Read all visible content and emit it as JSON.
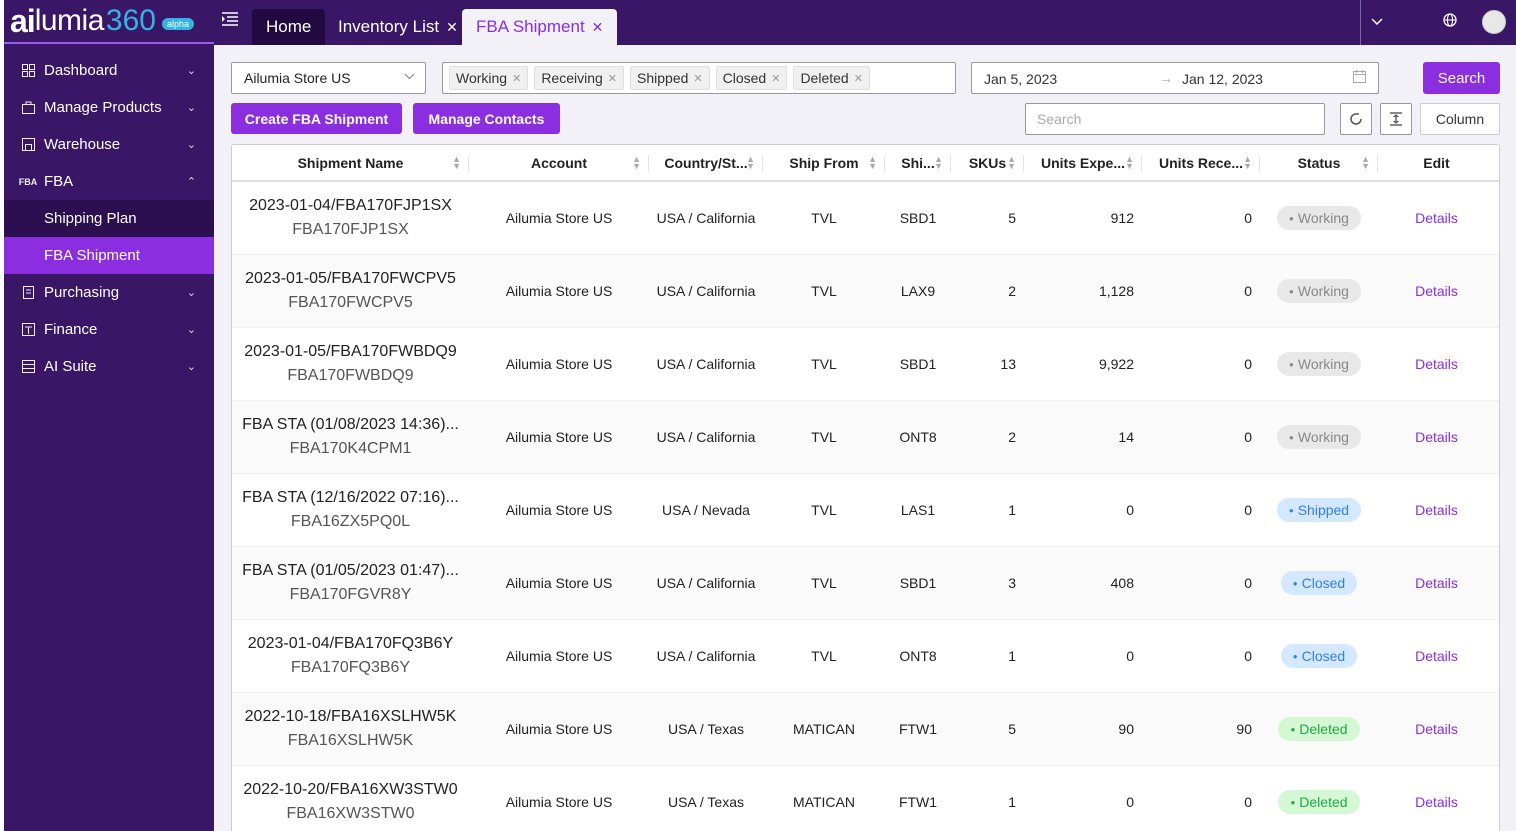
{
  "brand": {
    "logo_ai": "ai",
    "logo_lumia": "lumia",
    "logo_num": "360",
    "badge": "alpha"
  },
  "sidebar": {
    "items": [
      {
        "label": "Dashboard",
        "icon": "dashboard-icon"
      },
      {
        "label": "Manage Products",
        "icon": "products-icon"
      },
      {
        "label": "Warehouse",
        "icon": "warehouse-icon"
      },
      {
        "label": "FBA",
        "icon": "fba-icon"
      },
      {
        "label": "Purchasing",
        "icon": "purchasing-icon"
      },
      {
        "label": "Finance",
        "icon": "finance-icon"
      },
      {
        "label": "AI Suite",
        "icon": "ai-suite-icon"
      }
    ],
    "fba_icon_text": "FBA",
    "fba_sub": [
      {
        "label": "Shipping Plan"
      },
      {
        "label": "FBA Shipment"
      }
    ]
  },
  "tabs": [
    {
      "label": "Home"
    },
    {
      "label": "Inventory List"
    },
    {
      "label": "FBA Shipment"
    }
  ],
  "filters": {
    "store": "Ailumia Store US",
    "status_tags": [
      "Working",
      "Receiving",
      "Shipped",
      "Closed",
      "Deleted"
    ],
    "date_from": "Jan 5, 2023",
    "date_to": "Jan 12, 2023",
    "search_label": "Search",
    "search_placeholder": "Search"
  },
  "actions": {
    "create": "Create FBA Shipment",
    "contacts": "Manage Contacts",
    "column": "Column"
  },
  "table": {
    "headers": [
      "Shipment Name",
      "Account",
      "Country/St...",
      "Ship From",
      "Shi...",
      "SKUs",
      "Units Expe...",
      "Units Rece...",
      "Status",
      "Edit"
    ],
    "rows": [
      {
        "name": "2023-01-04/FBA170FJP1SX",
        "id": "FBA170FJP1SX",
        "account": "Ailumia Store US",
        "country": "USA / California",
        "ship_from": "TVL",
        "ship_to": "SBD1",
        "skus": "5",
        "units_expected": "912",
        "units_received": "0",
        "status": "Working",
        "edit": "Details"
      },
      {
        "name": "2023-01-05/FBA170FWCPV5",
        "id": "FBA170FWCPV5",
        "account": "Ailumia Store US",
        "country": "USA / California",
        "ship_from": "TVL",
        "ship_to": "LAX9",
        "skus": "2",
        "units_expected": "1,128",
        "units_received": "0",
        "status": "Working",
        "edit": "Details"
      },
      {
        "name": "2023-01-05/FBA170FWBDQ9",
        "id": "FBA170FWBDQ9",
        "account": "Ailumia Store US",
        "country": "USA / California",
        "ship_from": "TVL",
        "ship_to": "SBD1",
        "skus": "13",
        "units_expected": "9,922",
        "units_received": "0",
        "status": "Working",
        "edit": "Details"
      },
      {
        "name": "FBA STA (01/08/2023 14:36)...",
        "id": "FBA170K4CPM1",
        "account": "Ailumia Store US",
        "country": "USA / California",
        "ship_from": "TVL",
        "ship_to": "ONT8",
        "skus": "2",
        "units_expected": "14",
        "units_received": "0",
        "status": "Working",
        "edit": "Details"
      },
      {
        "name": "FBA STA (12/16/2022 07:16)...",
        "id": "FBA16ZX5PQ0L",
        "account": "Ailumia Store US",
        "country": "USA / Nevada",
        "ship_from": "TVL",
        "ship_to": "LAS1",
        "skus": "1",
        "units_expected": "0",
        "units_received": "0",
        "status": "Shipped",
        "edit": "Details"
      },
      {
        "name": "FBA STA (01/05/2023 01:47)...",
        "id": "FBA170FGVR8Y",
        "account": "Ailumia Store US",
        "country": "USA / California",
        "ship_from": "TVL",
        "ship_to": "SBD1",
        "skus": "3",
        "units_expected": "408",
        "units_received": "0",
        "status": "Closed",
        "edit": "Details"
      },
      {
        "name": "2023-01-04/FBA170FQ3B6Y",
        "id": "FBA170FQ3B6Y",
        "account": "Ailumia Store US",
        "country": "USA / California",
        "ship_from": "TVL",
        "ship_to": "ONT8",
        "skus": "1",
        "units_expected": "0",
        "units_received": "0",
        "status": "Closed",
        "edit": "Details"
      },
      {
        "name": "2022-10-18/FBA16XSLHW5K",
        "id": "FBA16XSLHW5K",
        "account": "Ailumia Store US",
        "country": "USA / Texas",
        "ship_from": "MATICAN",
        "ship_to": "FTW1",
        "skus": "5",
        "units_expected": "90",
        "units_received": "90",
        "status": "Deleted",
        "edit": "Details"
      },
      {
        "name": "2022-10-20/FBA16XW3STW0",
        "id": "FBA16XW3STW0",
        "account": "Ailumia Store US",
        "country": "USA / Texas",
        "ship_from": "MATICAN",
        "ship_to": "FTW1",
        "skus": "1",
        "units_expected": "0",
        "units_received": "0",
        "status": "Deleted",
        "edit": "Details"
      }
    ]
  }
}
